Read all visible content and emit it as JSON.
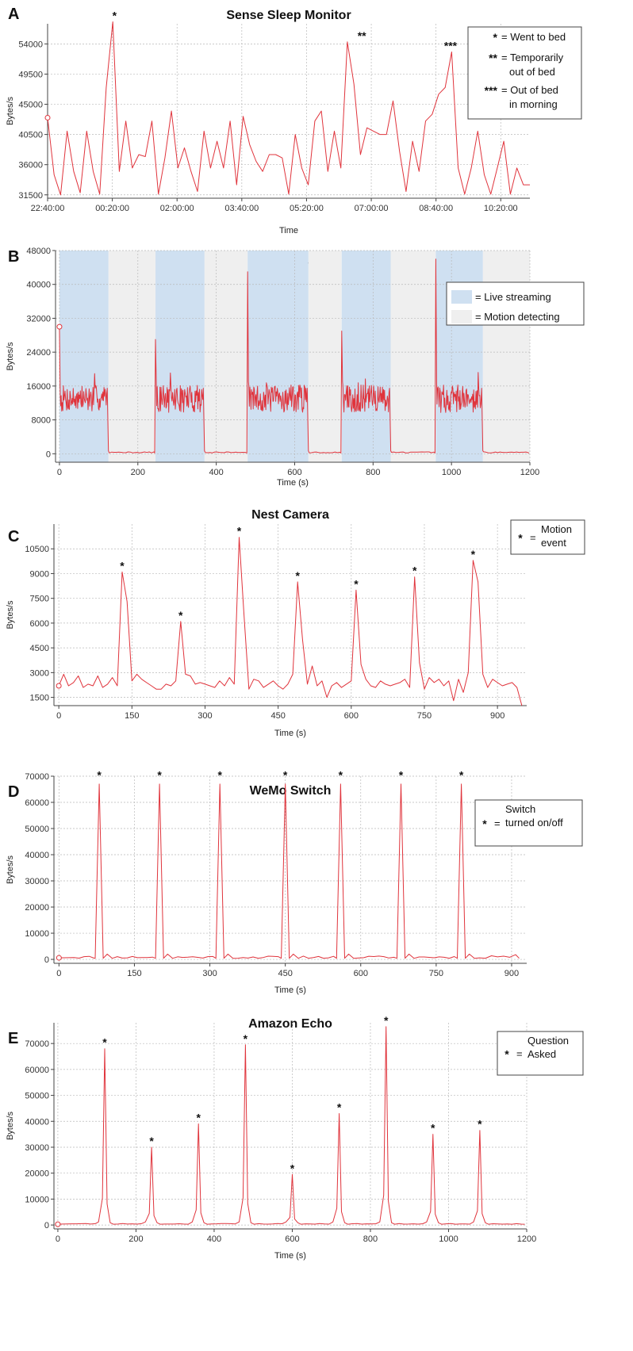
{
  "colors": {
    "line": "#e0343c",
    "grid": "#b9b9b9",
    "live": "#cfe0f1",
    "motion": "#efefef",
    "axis": "#444444"
  },
  "chart_data": [
    {
      "type": "line",
      "panel_label": "A",
      "title": "Sense Sleep Monitor",
      "xlabel": "Time",
      "ylabel": "Bytes/s",
      "x_ticks": [
        "22:40:00",
        "00:20:00",
        "02:00:00",
        "03:40:00",
        "05:20:00",
        "07:00:00",
        "08:40:00",
        "10:20:00"
      ],
      "xlim": [
        0,
        62
      ],
      "ylim": [
        31000,
        57000
      ],
      "y_ticks": [
        31500,
        36000,
        40500,
        45000,
        49500,
        54000
      ],
      "grid": true,
      "legend_position": "top-right",
      "legend": [
        {
          "symbol": "*",
          "text": "= Went to bed"
        },
        {
          "symbol": "**",
          "text": "= Temporarily out of bed"
        },
        {
          "symbol": "***",
          "text": "= Out of bed in morning"
        }
      ],
      "annotations": [
        {
          "x": 8.6,
          "y": 57300,
          "text": "*"
        },
        {
          "x": 40.4,
          "y": 54300,
          "text": "**"
        },
        {
          "x": 51.8,
          "y": 52800,
          "text": "***"
        }
      ],
      "series": [
        {
          "values": [
            43000,
            34500,
            31500,
            41000,
            35000,
            31800,
            41000,
            35000,
            31600,
            47500,
            57300,
            35000,
            42500,
            35500,
            37500,
            37200,
            42500,
            31600,
            37000,
            44000,
            35500,
            38500,
            35000,
            32000,
            41000,
            35500,
            39500,
            35500,
            42500,
            33000,
            43200,
            39000,
            36500,
            35000,
            37500,
            37500,
            37000,
            31600,
            40500,
            35500,
            33000,
            42500,
            44000,
            35000,
            41000,
            35500,
            54300,
            48000,
            37500,
            41500,
            41000,
            40500,
            40500,
            45500,
            38000,
            32000,
            39500,
            35000,
            42500,
            43500,
            46500,
            47500,
            52800,
            35500,
            31600,
            35500,
            41000,
            34500,
            31600,
            35500,
            39500,
            31600,
            35500,
            33000,
            33000
          ]
        }
      ]
    },
    {
      "type": "line",
      "panel_label": "B",
      "title": "Nest Camera",
      "xlabel": "Time (s)",
      "ylabel": "Bytes/s",
      "x_ticks": [
        0,
        200,
        400,
        600,
        800,
        1000,
        1200
      ],
      "xlim": [
        -10,
        1200
      ],
      "ylim": [
        -2000,
        48000
      ],
      "y_ticks": [
        0,
        8000,
        16000,
        24000,
        32000,
        40000,
        48000
      ],
      "grid": true,
      "legend_position": "top-right",
      "legend": [
        {
          "swatch": "live",
          "text": "= Live streaming"
        },
        {
          "swatch": "motion",
          "text": "= Motion detecting"
        }
      ],
      "live_streaming_intervals": [
        [
          0,
          125
        ],
        [
          245,
          370
        ],
        [
          480,
          635
        ],
        [
          720,
          845
        ],
        [
          960,
          1080
        ]
      ],
      "motion_detecting_intervals": [
        [
          125,
          245
        ],
        [
          370,
          480
        ],
        [
          635,
          720
        ],
        [
          845,
          960
        ],
        [
          1080,
          1200
        ]
      ],
      "start_value": 30000,
      "streaming_level_approx": 13000,
      "idle_level_approx": 200,
      "spikes": [
        {
          "x": 0,
          "y": 30000
        },
        {
          "x": 243,
          "y": 27000
        },
        {
          "x": 480,
          "y": 43000
        },
        {
          "x": 722,
          "y": 29000
        },
        {
          "x": 960,
          "y": 46000
        }
      ]
    },
    {
      "type": "line",
      "panel_label": "C",
      "title": "Nest Camera",
      "xlabel": "Time (s)",
      "ylabel": "Bytes/s",
      "x_ticks": [
        0,
        150,
        300,
        450,
        600,
        750,
        900
      ],
      "xlim": [
        -10,
        960
      ],
      "ylim": [
        1000,
        12000
      ],
      "y_ticks": [
        1500,
        3000,
        4500,
        6000,
        7500,
        9000,
        10500
      ],
      "grid": true,
      "legend_position": "top-right",
      "legend": [
        {
          "symbol": "*",
          "text": "= Motion event"
        }
      ],
      "annotations": [
        {
          "x": 130,
          "y": 9100,
          "text": "*"
        },
        {
          "x": 250,
          "y": 6100,
          "text": "*"
        },
        {
          "x": 370,
          "y": 11200,
          "text": "*"
        },
        {
          "x": 490,
          "y": 8500,
          "text": "*"
        },
        {
          "x": 610,
          "y": 8000,
          "text": "*"
        },
        {
          "x": 730,
          "y": 8800,
          "text": "*"
        },
        {
          "x": 850,
          "y": 9800,
          "text": "*"
        }
      ],
      "series": [
        {
          "x": [
            0,
            10,
            20,
            30,
            40,
            50,
            60,
            70,
            80,
            90,
            100,
            110,
            120,
            130,
            140,
            150,
            160,
            170,
            180,
            190,
            200,
            210,
            220,
            230,
            240,
            250,
            260,
            270,
            280,
            290,
            300,
            310,
            320,
            330,
            340,
            350,
            360,
            370,
            380,
            390,
            400,
            410,
            420,
            430,
            440,
            450,
            460,
            470,
            480,
            490,
            500,
            510,
            520,
            530,
            540,
            550,
            560,
            570,
            580,
            590,
            600,
            610,
            620,
            630,
            640,
            650,
            660,
            670,
            680,
            690,
            700,
            710,
            720,
            730,
            740,
            750,
            760,
            770,
            780,
            790,
            800,
            810,
            820,
            830,
            840,
            850,
            860,
            870,
            880,
            890,
            900,
            910,
            920,
            930,
            940,
            950
          ],
          "values": [
            2200,
            2900,
            2200,
            2400,
            2800,
            2100,
            2300,
            2200,
            2800,
            2100,
            2300,
            2700,
            2200,
            9100,
            7300,
            2500,
            2900,
            2600,
            2400,
            2200,
            2000,
            2000,
            2300,
            2200,
            2500,
            6100,
            2900,
            2800,
            2300,
            2400,
            2300,
            2200,
            2100,
            2500,
            2200,
            2700,
            2300,
            11200,
            6500,
            2000,
            2600,
            2500,
            2100,
            2300,
            2500,
            2200,
            2000,
            2300,
            2900,
            8500,
            5000,
            2300,
            3400,
            2200,
            2500,
            1500,
            2200,
            2400,
            2100,
            2300,
            2500,
            8000,
            3500,
            2600,
            2200,
            2100,
            2500,
            2300,
            2200,
            2300,
            2400,
            2600,
            2100,
            8800,
            3600,
            2000,
            2700,
            2400,
            2600,
            2200,
            2500,
            1300,
            2600,
            1800,
            3000,
            9800,
            8500,
            2900,
            2100,
            2600,
            2400,
            2200,
            2300,
            2400,
            2100,
            1000
          ]
        }
      ]
    },
    {
      "type": "line",
      "panel_label": "D",
      "title": "WeMo Switch",
      "xlabel": "Time (s)",
      "ylabel": "Bytes/s",
      "x_ticks": [
        0,
        150,
        300,
        450,
        600,
        750,
        900
      ],
      "xlim": [
        -10,
        930
      ],
      "ylim": [
        -1500,
        70000
      ],
      "y_ticks": [
        0,
        10000,
        20000,
        30000,
        40000,
        50000,
        60000,
        70000
      ],
      "grid": true,
      "legend_position": "top-right",
      "legend": [
        {
          "symbol": "*",
          "text": "= Switch turned on/off"
        }
      ],
      "annotations": [
        {
          "x": 80,
          "y": 68000,
          "text": "*"
        },
        {
          "x": 200,
          "y": 68000,
          "text": "*"
        },
        {
          "x": 320,
          "y": 68000,
          "text": "*"
        },
        {
          "x": 450,
          "y": 68000,
          "text": "*"
        },
        {
          "x": 560,
          "y": 68000,
          "text": "*"
        },
        {
          "x": 680,
          "y": 68000,
          "text": "*"
        },
        {
          "x": 800,
          "y": 68000,
          "text": "*"
        }
      ],
      "peak_value": 67000,
      "peaks_x": [
        80,
        200,
        320,
        450,
        560,
        680,
        800
      ],
      "baseline_value": 400
    },
    {
      "type": "line",
      "panel_label": "E",
      "title": "Amazon Echo",
      "xlabel": "Time (s)",
      "ylabel": "Bytes/s",
      "x_ticks": [
        0,
        200,
        400,
        600,
        800,
        1000,
        1200
      ],
      "xlim": [
        -10,
        1200
      ],
      "ylim": [
        -1500,
        78000
      ],
      "y_ticks": [
        0,
        10000,
        20000,
        30000,
        40000,
        50000,
        60000,
        70000
      ],
      "grid": true,
      "legend_position": "top-right",
      "legend": [
        {
          "symbol": "*",
          "text": "= Question Asked"
        }
      ],
      "annotations": [
        {
          "x": 120,
          "y": 68000,
          "text": "*"
        },
        {
          "x": 240,
          "y": 30000,
          "text": "*"
        },
        {
          "x": 360,
          "y": 39000,
          "text": "*"
        },
        {
          "x": 480,
          "y": 69500,
          "text": "*"
        },
        {
          "x": 600,
          "y": 19500,
          "text": "*"
        },
        {
          "x": 720,
          "y": 43000,
          "text": "*"
        },
        {
          "x": 840,
          "y": 76500,
          "text": "*"
        },
        {
          "x": 960,
          "y": 35000,
          "text": "*"
        },
        {
          "x": 1080,
          "y": 36500,
          "text": "*"
        }
      ],
      "peaks": [
        {
          "x": 120,
          "y": 68000
        },
        {
          "x": 240,
          "y": 30000
        },
        {
          "x": 360,
          "y": 39000
        },
        {
          "x": 480,
          "y": 69500
        },
        {
          "x": 600,
          "y": 19500
        },
        {
          "x": 720,
          "y": 43000
        },
        {
          "x": 840,
          "y": 76500
        },
        {
          "x": 960,
          "y": 35000
        },
        {
          "x": 1080,
          "y": 36500
        }
      ],
      "baseline_value": 300
    }
  ]
}
